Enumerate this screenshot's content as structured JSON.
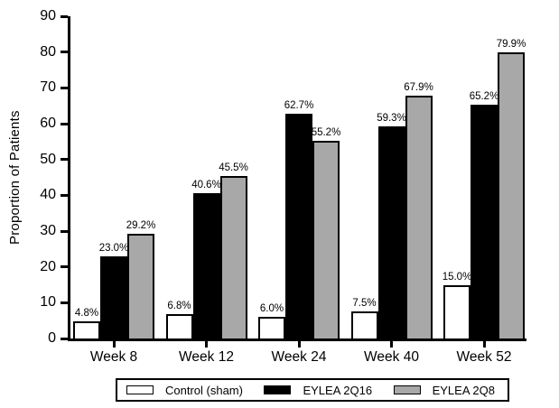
{
  "chart_data": {
    "type": "bar",
    "title": "",
    "ylabel": "Proportion of Patients",
    "xlabel": "",
    "ylim": [
      0,
      90
    ],
    "ytick_step": 10,
    "grid": false,
    "legend_position": "bottom",
    "categories": [
      "Week 8",
      "Week 12",
      "Week 24",
      "Week 40",
      "Week 52"
    ],
    "series": [
      {
        "name": "Control (sham)",
        "color": "#ffffff",
        "values": [
          4.8,
          6.8,
          6.0,
          7.5,
          15.0
        ],
        "labels": [
          "4.8%",
          "6.8%",
          "6.0%",
          "7.5%",
          "15.0%"
        ]
      },
      {
        "name": "EYLEA 2Q16",
        "color": "#000000",
        "values": [
          23.0,
          40.6,
          62.7,
          59.3,
          65.2
        ],
        "labels": [
          "23.0%",
          "40.6%",
          "62.7%",
          "59.3%",
          "65.2%"
        ]
      },
      {
        "name": "EYLEA 2Q8",
        "color": "#a8a8a8",
        "values": [
          29.2,
          45.5,
          55.2,
          67.9,
          79.9
        ],
        "labels": [
          "29.2%",
          "45.5%",
          "55.2%",
          "67.9%",
          "79.9%"
        ]
      }
    ],
    "axis_color": "#000000",
    "bar_border_color": "#000000",
    "background_color": "#ffffff"
  }
}
